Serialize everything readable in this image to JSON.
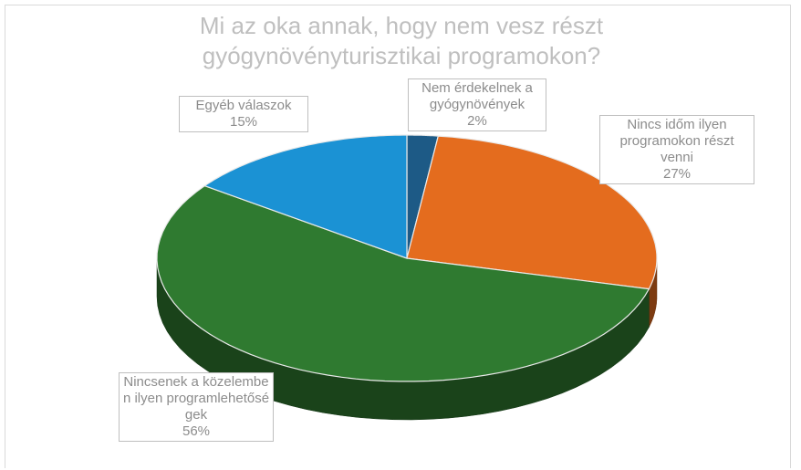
{
  "chart_data": {
    "type": "pie3d",
    "title": "Mi az oka annak, hogy nem vesz részt gyógynövényturisztikai programokon?",
    "categories": [
      "Nem érdekelnek a gyógynövények",
      "Nincs időm ilyen programokon részt venni",
      "Nincsenek a közelemben ilyen programlehetőségek",
      "Egyéb válaszok"
    ],
    "values": [
      2,
      27,
      56,
      15
    ],
    "value_labels": [
      "2%",
      "27%",
      "56%",
      "15%"
    ],
    "colors": [
      "#1d5a86",
      "#e46c1e",
      "#2f7a30",
      "#1b92d4"
    ]
  }
}
